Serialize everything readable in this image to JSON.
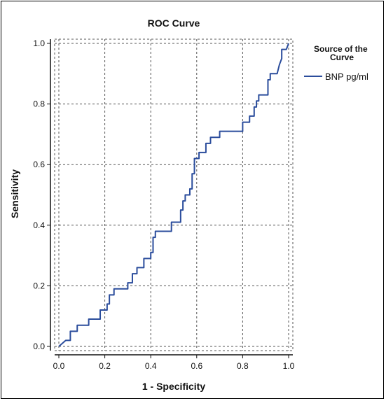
{
  "chart_data": {
    "type": "line",
    "title": "ROC Curve",
    "xlabel": "1 - Specificity",
    "ylabel": "Sensitivity",
    "xlim": [
      0,
      1
    ],
    "ylim": [
      0,
      1
    ],
    "x_ticks": [
      "0.0",
      "0.2",
      "0.4",
      "0.6",
      "0.8",
      "1.0"
    ],
    "y_ticks": [
      "0.0",
      "0.2",
      "0.4",
      "0.6",
      "0.8",
      "1.0"
    ],
    "grid": true,
    "legend": {
      "placement": "right",
      "title": "Source of the Curve",
      "title_lines": [
        "Source of the",
        "Curve"
      ]
    },
    "series": [
      {
        "name": "BNP pg/ml",
        "color": "#2b4d9c",
        "points": [
          [
            0.0,
            0.0
          ],
          [
            0.03,
            0.02
          ],
          [
            0.05,
            0.02
          ],
          [
            0.05,
            0.05
          ],
          [
            0.08,
            0.05
          ],
          [
            0.08,
            0.07
          ],
          [
            0.13,
            0.07
          ],
          [
            0.13,
            0.09
          ],
          [
            0.18,
            0.09
          ],
          [
            0.18,
            0.12
          ],
          [
            0.21,
            0.12
          ],
          [
            0.21,
            0.14
          ],
          [
            0.22,
            0.14
          ],
          [
            0.22,
            0.17
          ],
          [
            0.24,
            0.17
          ],
          [
            0.24,
            0.19
          ],
          [
            0.3,
            0.19
          ],
          [
            0.3,
            0.21
          ],
          [
            0.32,
            0.21
          ],
          [
            0.32,
            0.24
          ],
          [
            0.34,
            0.24
          ],
          [
            0.34,
            0.26
          ],
          [
            0.37,
            0.26
          ],
          [
            0.37,
            0.29
          ],
          [
            0.4,
            0.29
          ],
          [
            0.4,
            0.31
          ],
          [
            0.41,
            0.31
          ],
          [
            0.41,
            0.36
          ],
          [
            0.42,
            0.36
          ],
          [
            0.42,
            0.38
          ],
          [
            0.49,
            0.38
          ],
          [
            0.49,
            0.41
          ],
          [
            0.53,
            0.41
          ],
          [
            0.53,
            0.45
          ],
          [
            0.54,
            0.45
          ],
          [
            0.54,
            0.48
          ],
          [
            0.55,
            0.48
          ],
          [
            0.55,
            0.5
          ],
          [
            0.57,
            0.5
          ],
          [
            0.57,
            0.52
          ],
          [
            0.58,
            0.52
          ],
          [
            0.58,
            0.57
          ],
          [
            0.59,
            0.57
          ],
          [
            0.59,
            0.62
          ],
          [
            0.61,
            0.62
          ],
          [
            0.61,
            0.64
          ],
          [
            0.64,
            0.64
          ],
          [
            0.64,
            0.67
          ],
          [
            0.66,
            0.67
          ],
          [
            0.66,
            0.69
          ],
          [
            0.7,
            0.69
          ],
          [
            0.7,
            0.71
          ],
          [
            0.8,
            0.71
          ],
          [
            0.8,
            0.74
          ],
          [
            0.83,
            0.74
          ],
          [
            0.83,
            0.76
          ],
          [
            0.85,
            0.76
          ],
          [
            0.85,
            0.79
          ],
          [
            0.86,
            0.79
          ],
          [
            0.86,
            0.81
          ],
          [
            0.87,
            0.81
          ],
          [
            0.87,
            0.83
          ],
          [
            0.91,
            0.83
          ],
          [
            0.91,
            0.88
          ],
          [
            0.92,
            0.88
          ],
          [
            0.92,
            0.9
          ],
          [
            0.95,
            0.9
          ],
          [
            0.96,
            0.93
          ],
          [
            0.97,
            0.95
          ],
          [
            0.97,
            0.98
          ],
          [
            0.99,
            0.98
          ],
          [
            1.0,
            1.0
          ]
        ]
      }
    ]
  }
}
